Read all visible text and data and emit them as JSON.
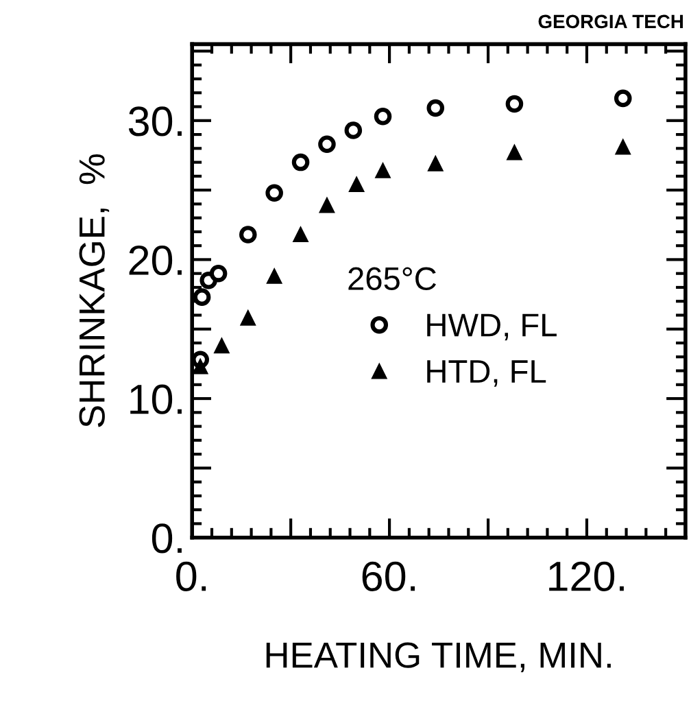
{
  "chart_data": {
    "type": "scatter",
    "xlabel": "HEATING TIME, MIN.",
    "ylabel": "SHRINKAGE,  %",
    "legend_title": "265°C",
    "legend": "center right",
    "annotations": [
      "GEORGIA TECH"
    ],
    "xlim": [
      0,
      150
    ],
    "ylim": [
      0,
      35.5
    ],
    "xticks": [
      {
        "value": 0,
        "label": "0."
      },
      {
        "value": 30,
        "label": null
      },
      {
        "value": 60,
        "label": "60."
      },
      {
        "value": 90,
        "label": null
      },
      {
        "value": 120,
        "label": "120."
      }
    ],
    "yticks": [
      {
        "value": 0,
        "label": "0."
      },
      {
        "value": 5,
        "label": null
      },
      {
        "value": 10,
        "label": "10."
      },
      {
        "value": 15,
        "label": null
      },
      {
        "value": 20,
        "label": "20."
      },
      {
        "value": 25,
        "label": null
      },
      {
        "value": 30,
        "label": "30."
      },
      {
        "value": 35,
        "label": null
      }
    ],
    "series": [
      {
        "name": "HWD, FL",
        "color": "#000000",
        "marker": "circle",
        "x": [
          2.5,
          3,
          5,
          8,
          17,
          25,
          33,
          41,
          49,
          58,
          74,
          98,
          131
        ],
        "values": [
          12.8,
          17.3,
          18.5,
          19.0,
          21.8,
          24.8,
          27.0,
          28.3,
          29.3,
          30.3,
          30.9,
          31.2,
          31.6
        ]
      },
      {
        "name": "HTD, FL",
        "color": "#000000",
        "marker": "triangle",
        "x": [
          2.5,
          9,
          17,
          25,
          33,
          41,
          50,
          58,
          74,
          98,
          131
        ],
        "values": [
          12.3,
          13.8,
          15.8,
          18.8,
          21.8,
          23.9,
          25.4,
          26.4,
          26.9,
          27.7,
          28.1
        ]
      }
    ]
  }
}
